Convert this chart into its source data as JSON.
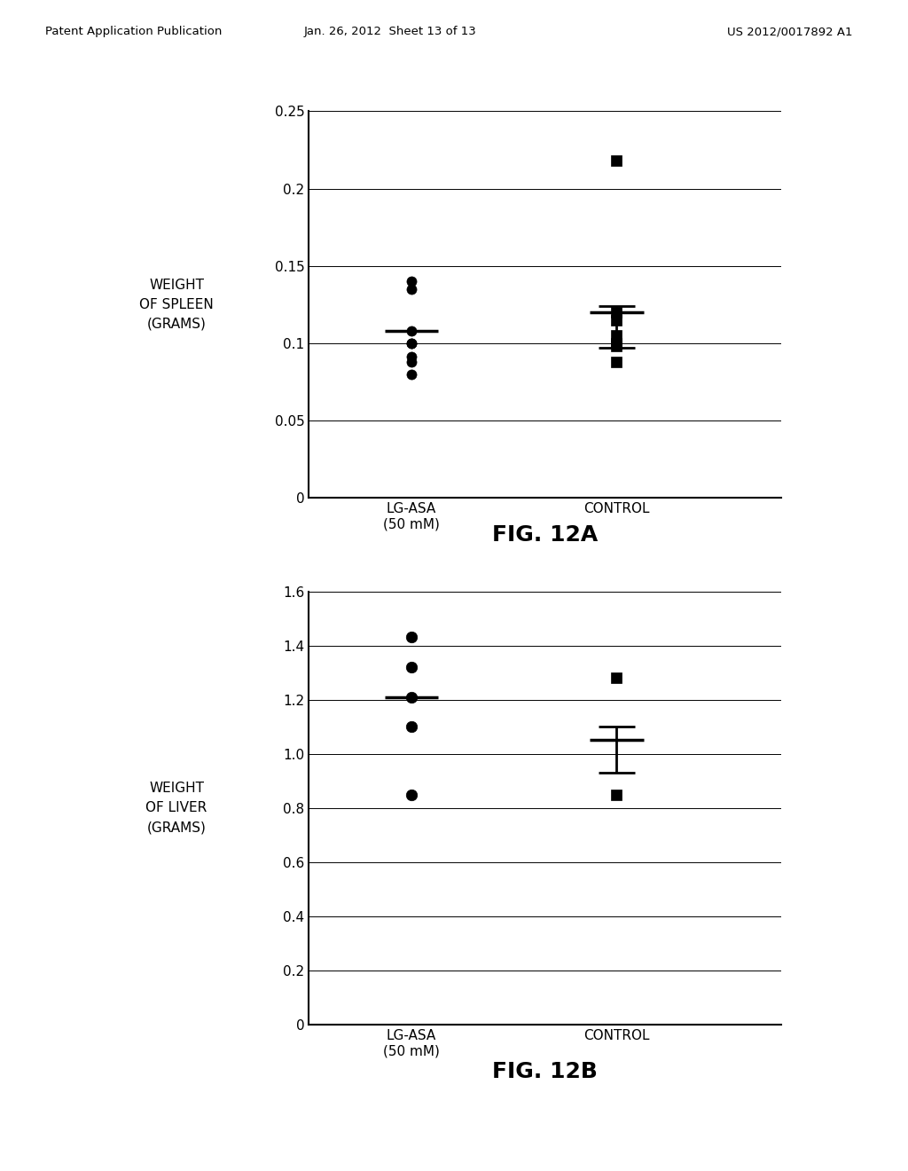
{
  "fig12a": {
    "title": "FIG. 12A",
    "ylabel": "WEIGHT\nOF SPLEEN\n(GRAMS)",
    "xlabel_labels": [
      "LG-ASA\n(50 mM)",
      "CONTROL"
    ],
    "ylim": [
      0,
      0.25
    ],
    "yticks": [
      0,
      0.05,
      0.1,
      0.15,
      0.2,
      0.25
    ],
    "lgasa_points": [
      0.14,
      0.135,
      0.108,
      0.1,
      0.1,
      0.091,
      0.088,
      0.08
    ],
    "lgasa_mean": 0.108,
    "control_points": [
      0.218,
      0.12,
      0.115,
      0.105,
      0.1,
      0.098,
      0.088
    ],
    "control_mean": 0.12,
    "control_sem_low": 0.097,
    "control_sem_high": 0.124
  },
  "fig12b": {
    "title": "FIG. 12B",
    "ylabel": "WEIGHT\nOF LIVER\n(GRAMS)",
    "xlabel_labels": [
      "LG-ASA\n(50 mM)",
      "CONTROL"
    ],
    "ylim": [
      0,
      1.6
    ],
    "yticks": [
      0,
      0.2,
      0.4,
      0.6,
      0.8,
      1.0,
      1.2,
      1.4,
      1.6
    ],
    "lgasa_points": [
      1.43,
      1.32,
      1.21,
      1.1,
      0.85
    ],
    "lgasa_mean": 1.21,
    "control_points": [
      1.28,
      0.85
    ],
    "control_mean": 1.05,
    "control_sem_low": 0.93,
    "control_sem_high": 1.1
  },
  "header_left": "Patent Application Publication",
  "header_center": "Jan. 26, 2012  Sheet 13 of 13",
  "header_right": "US 2012/0017892 A1",
  "bg_color": "#ffffff",
  "text_color": "#000000"
}
